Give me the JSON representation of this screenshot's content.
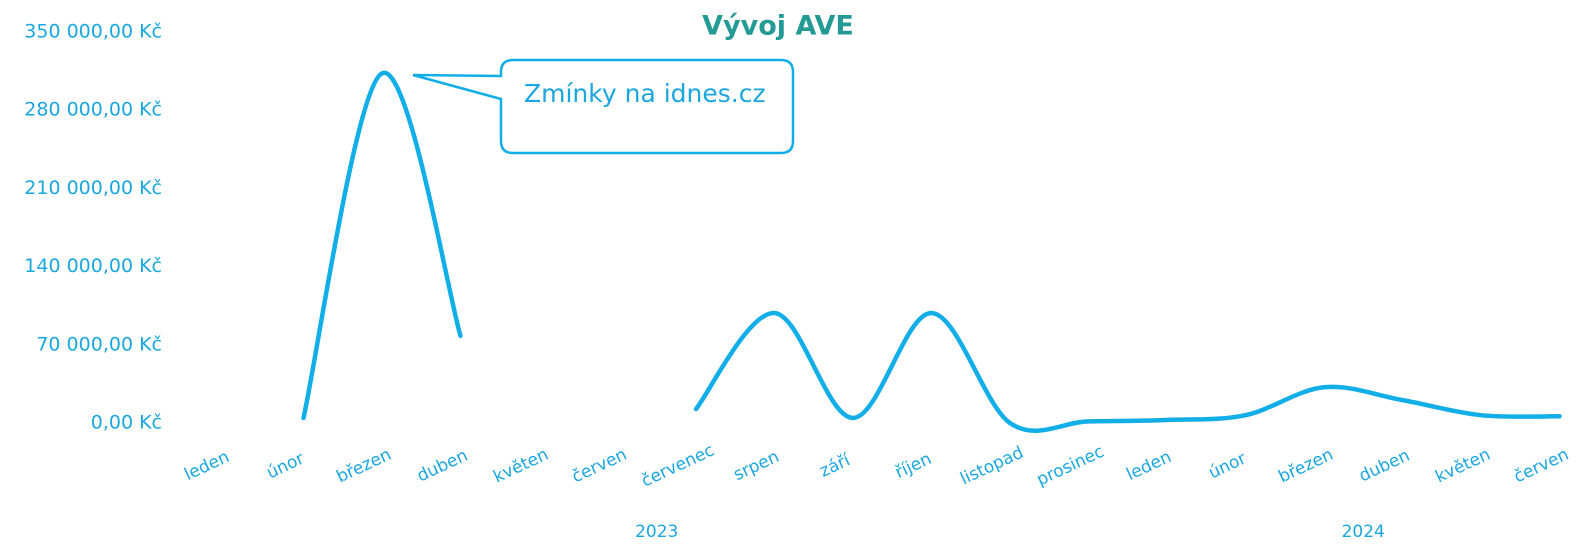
{
  "chart_data": {
    "type": "line",
    "title": "Vývoj AVE",
    "categories": [
      "leden",
      "únor",
      "březen",
      "duben",
      "květen",
      "červen",
      "červenec",
      "srpen",
      "září",
      "říjen",
      "listopad",
      "prosinec",
      "leden",
      "únor",
      "březen",
      "duben",
      "květen",
      "červen"
    ],
    "category_groups": [
      {
        "label": "2023",
        "count": 12
      },
      {
        "label": "2024",
        "count": 6
      }
    ],
    "series": [
      {
        "name": "AVE",
        "color": "#12aee8",
        "values": [
          null,
          4500,
          313000,
          78000,
          null,
          null,
          12500,
          98500,
          4500,
          98500,
          0,
          1500,
          2700,
          7000,
          32000,
          20500,
          7000,
          6000
        ]
      }
    ],
    "ylim": [
      0,
      350000
    ],
    "yticks": [
      {
        "value": 0,
        "label": "0,00 Kč"
      },
      {
        "value": 70000,
        "label": "70 000,00 Kč"
      },
      {
        "value": 140000,
        "label": "140 000,00 Kč"
      },
      {
        "value": 210000,
        "label": "210 000,00 Kč"
      },
      {
        "value": 280000,
        "label": "280 000,00 Kč"
      },
      {
        "value": 350000,
        "label": "350 000,00 Kč"
      }
    ],
    "grid": false,
    "annotation": {
      "text": "Zmínky na idnes.cz"
    }
  }
}
